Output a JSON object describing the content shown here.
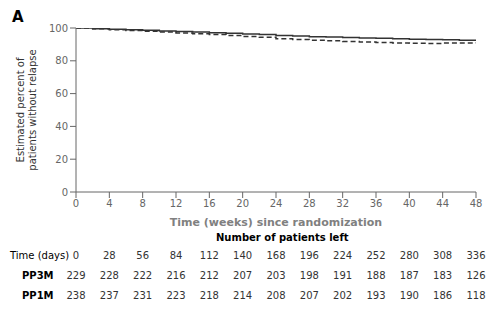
{
  "chart_data": {
    "type": "line",
    "title": "A",
    "xlabel": "Time (weeks) since randomization",
    "ylabel": "Estimated percent of\npatients without relapse",
    "x": [
      0,
      2,
      4,
      6,
      8,
      10,
      12,
      14,
      16,
      18,
      20,
      22,
      24,
      26,
      28,
      30,
      32,
      34,
      36,
      38,
      40,
      42,
      44,
      46,
      48
    ],
    "series": [
      {
        "values": [
          100,
          99.6,
          99.2,
          98.9,
          98.6,
          98.2,
          97.9,
          97.5,
          97.1,
          96.8,
          96.4,
          96.0,
          95.5,
          95.1,
          94.7,
          94.5,
          94.2,
          93.9,
          93.7,
          93.4,
          93.2,
          93.0,
          92.8,
          92.5,
          92.2
        ],
        "color": "#333333",
        "line_style": "solid"
      },
      {
        "values": [
          100,
          99.5,
          99.0,
          98.5,
          98.0,
          97.5,
          97.0,
          96.5,
          96.0,
          95.4,
          94.8,
          94.3,
          93.5,
          93.0,
          92.6,
          92.2,
          91.8,
          91.5,
          91.2,
          90.9,
          90.7,
          90.5,
          90.8,
          90.9,
          91.0
        ],
        "color": "#333333",
        "line_style": "dashed"
      }
    ],
    "xlim": [
      0,
      48
    ],
    "ylim": [
      0,
      100
    ],
    "xticks": [
      0,
      4,
      8,
      12,
      16,
      20,
      24,
      28,
      32,
      36,
      40,
      44,
      48
    ],
    "yticks": [
      0,
      20,
      40,
      60,
      80,
      100
    ],
    "grid": false,
    "table": {
      "title": "Number of patients left",
      "columns_label": "Time (days)",
      "columns": [
        0,
        28,
        56,
        84,
        112,
        140,
        168,
        196,
        224,
        252,
        280,
        308,
        336
      ],
      "rows": [
        {
          "name": "PP3M",
          "values": [
            229,
            228,
            222,
            216,
            212,
            207,
            203,
            198,
            191,
            188,
            187,
            183,
            126
          ]
        },
        {
          "name": "PP1M",
          "values": [
            238,
            237,
            231,
            223,
            218,
            214,
            208,
            207,
            202,
            193,
            190,
            186,
            118
          ]
        }
      ]
    }
  }
}
